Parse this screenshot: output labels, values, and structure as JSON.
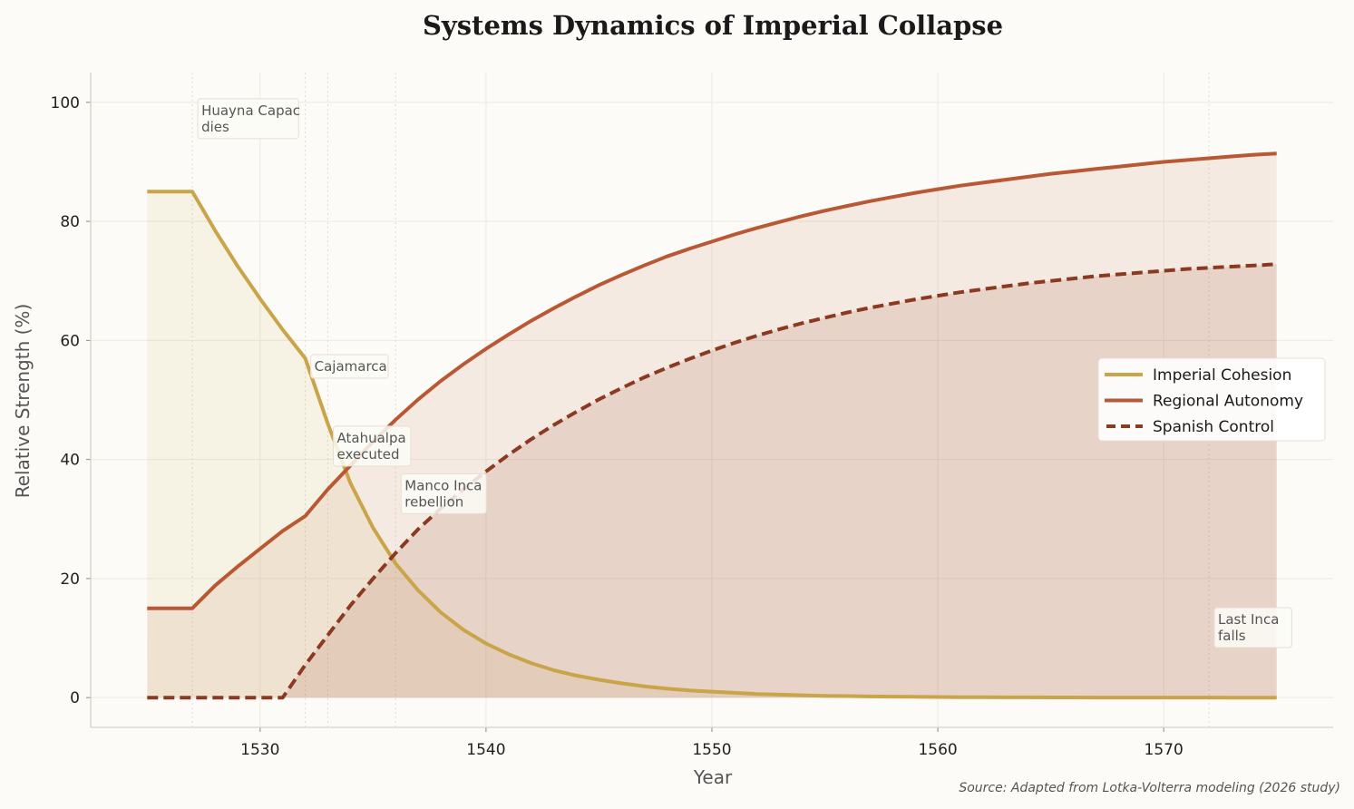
{
  "chart_data": {
    "type": "line",
    "title": "Systems Dynamics of Imperial Collapse",
    "xlabel": "Year",
    "ylabel": "Relative Strength (%)",
    "xlim": [
      1522.5,
      1577.5
    ],
    "ylim": [
      -5,
      105
    ],
    "xticks": [
      1530,
      1540,
      1550,
      1560,
      1570
    ],
    "yticks": [
      0,
      20,
      40,
      60,
      80,
      100
    ],
    "grid": true,
    "legend_position": "center-right",
    "x": [
      1525,
      1526,
      1527,
      1528,
      1529,
      1530,
      1531,
      1532,
      1533,
      1534,
      1535,
      1536,
      1537,
      1538,
      1539,
      1540,
      1541,
      1542,
      1543,
      1544,
      1545,
      1546,
      1547,
      1548,
      1549,
      1550,
      1551,
      1552,
      1553,
      1554,
      1555,
      1556,
      1557,
      1558,
      1559,
      1560,
      1561,
      1562,
      1563,
      1564,
      1565,
      1566,
      1567,
      1568,
      1569,
      1570,
      1571,
      1572,
      1573,
      1574,
      1575
    ],
    "series": [
      {
        "name": "Imperial Cohesion",
        "color": "#c9a448",
        "style": "solid",
        "values": [
          85,
          85,
          85,
          78.5,
          72.5,
          67,
          61.8,
          57,
          46,
          36,
          28.5,
          22.5,
          18,
          14.3,
          11.4,
          9.1,
          7.3,
          5.8,
          4.6,
          3.7,
          3.0,
          2.4,
          1.9,
          1.5,
          1.2,
          1.0,
          0.8,
          0.6,
          0.5,
          0.4,
          0.3,
          0.25,
          0.2,
          0.16,
          0.13,
          0.1,
          0.08,
          0.06,
          0.05,
          0.04,
          0.03,
          0.03,
          0.02,
          0.02,
          0.01,
          0.01,
          0.01,
          0.01,
          0,
          0,
          0
        ]
      },
      {
        "name": "Regional Autonomy",
        "color": "#b95834",
        "style": "solid",
        "values": [
          15,
          15,
          15,
          18.8,
          22,
          25,
          28,
          30.5,
          35,
          39,
          43,
          46.7,
          50.1,
          53.2,
          56,
          58.6,
          61,
          63.3,
          65.4,
          67.4,
          69.3,
          71,
          72.6,
          74.1,
          75.4,
          76.6,
          77.8,
          78.9,
          79.9,
          80.9,
          81.8,
          82.6,
          83.4,
          84.1,
          84.8,
          85.4,
          86,
          86.5,
          87,
          87.5,
          88,
          88.4,
          88.8,
          89.2,
          89.6,
          90,
          90.3,
          90.6,
          90.9,
          91.2,
          91.4
        ]
      },
      {
        "name": "Spanish Control",
        "color": "#8b3a22",
        "style": "dashed",
        "values": [
          0,
          0,
          0,
          0,
          0,
          0,
          0,
          5.5,
          10.5,
          15.5,
          20,
          24.3,
          28.3,
          31.8,
          35,
          38,
          40.8,
          43.4,
          45.8,
          48,
          50.1,
          52,
          53.8,
          55.4,
          56.9,
          58.3,
          59.6,
          60.8,
          61.9,
          62.9,
          63.8,
          64.7,
          65.5,
          66.2,
          66.9,
          67.5,
          68.1,
          68.6,
          69.1,
          69.6,
          70,
          70.4,
          70.8,
          71.1,
          71.4,
          71.7,
          72,
          72.2,
          72.4,
          72.6,
          72.8
        ]
      }
    ],
    "events": [
      {
        "year": 1527,
        "label": [
          "Huayna Capac",
          "dies"
        ]
      },
      {
        "year": 1532,
        "label": [
          "Cajamarca"
        ]
      },
      {
        "year": 1533,
        "label": [
          "Atahualpa",
          "executed"
        ]
      },
      {
        "year": 1536,
        "label": [
          "Manco Inca",
          "rebellion"
        ]
      },
      {
        "year": 1572,
        "label": [
          "Last Inca",
          "falls"
        ]
      }
    ],
    "source": "Source: Adapted from Lotka-Volterra modeling (2026 study)"
  }
}
